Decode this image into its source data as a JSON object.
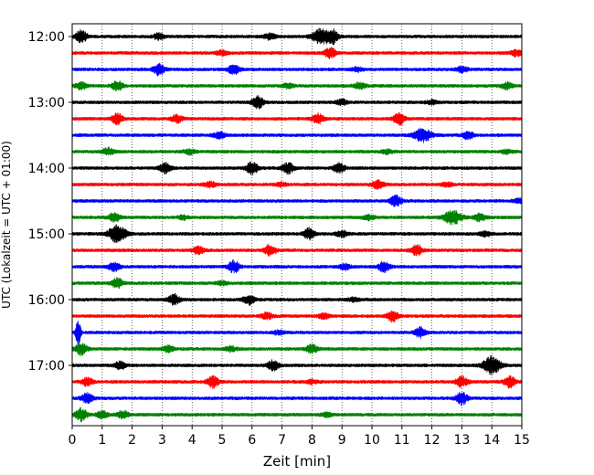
{
  "chart_data": {
    "type": "line",
    "title": "",
    "xlabel": "Zeit  [min]",
    "ylabel": "UTC (Lokalzeit = UTC + 01:00)",
    "xlim": [
      0,
      15
    ],
    "x_ticks": [
      0,
      1,
      2,
      3,
      4,
      5,
      6,
      7,
      8,
      9,
      10,
      11,
      12,
      13,
      14,
      15
    ],
    "x_tick_labels": [
      "0",
      "1",
      "2",
      "3",
      "4",
      "5",
      "6",
      "7",
      "8",
      "9",
      "10",
      "11",
      "12",
      "13",
      "14",
      "15"
    ],
    "y_tick_labels": [
      "12:00",
      "13:00",
      "14:00",
      "15:00",
      "16:00",
      "17:00"
    ],
    "grid": "vertical dotted at each minute",
    "line_colors": [
      "#000000",
      "#ff0000",
      "#0000ff",
      "#008000"
    ],
    "traces": [
      {
        "start": "12:00",
        "color": "#000000",
        "bursts": [
          {
            "t": 0.3,
            "a": 1.0
          },
          {
            "t": 2.9,
            "a": 0.5
          },
          {
            "t": 6.6,
            "a": 0.5
          },
          {
            "t": 8.3,
            "a": 1.2
          },
          {
            "t": 8.7,
            "a": 1.0
          }
        ]
      },
      {
        "start": "12:15",
        "color": "#ff0000",
        "bursts": [
          {
            "t": 5.0,
            "a": 0.4
          },
          {
            "t": 8.6,
            "a": 0.9
          },
          {
            "t": 14.8,
            "a": 0.5
          }
        ]
      },
      {
        "start": "12:30",
        "color": "#0000ff",
        "bursts": [
          {
            "t": 2.9,
            "a": 0.9
          },
          {
            "t": 5.4,
            "a": 0.8
          },
          {
            "t": 9.5,
            "a": 0.3
          },
          {
            "t": 13.0,
            "a": 0.5
          }
        ]
      },
      {
        "start": "12:45",
        "color": "#008000",
        "bursts": [
          {
            "t": 0.3,
            "a": 0.6
          },
          {
            "t": 1.5,
            "a": 0.8
          },
          {
            "t": 7.2,
            "a": 0.4
          },
          {
            "t": 9.6,
            "a": 0.5
          },
          {
            "t": 14.5,
            "a": 0.5
          }
        ]
      },
      {
        "start": "13:00",
        "color": "#000000",
        "bursts": [
          {
            "t": 6.2,
            "a": 1.0
          },
          {
            "t": 9.0,
            "a": 0.4
          },
          {
            "t": 12.0,
            "a": 0.3
          }
        ]
      },
      {
        "start": "13:15",
        "color": "#ff0000",
        "bursts": [
          {
            "t": 1.5,
            "a": 0.9
          },
          {
            "t": 3.5,
            "a": 0.6
          },
          {
            "t": 8.2,
            "a": 0.8
          },
          {
            "t": 10.9,
            "a": 1.0
          }
        ]
      },
      {
        "start": "13:30",
        "color": "#0000ff",
        "bursts": [
          {
            "t": 4.9,
            "a": 0.5
          },
          {
            "t": 11.7,
            "a": 1.1
          },
          {
            "t": 13.2,
            "a": 0.6
          }
        ]
      },
      {
        "start": "13:45",
        "color": "#008000",
        "bursts": [
          {
            "t": 1.2,
            "a": 0.6
          },
          {
            "t": 3.9,
            "a": 0.4
          },
          {
            "t": 10.5,
            "a": 0.3
          },
          {
            "t": 14.5,
            "a": 0.3
          }
        ]
      },
      {
        "start": "14:00",
        "color": "#000000",
        "bursts": [
          {
            "t": 3.1,
            "a": 0.8
          },
          {
            "t": 6.0,
            "a": 1.0
          },
          {
            "t": 7.2,
            "a": 0.9
          },
          {
            "t": 8.9,
            "a": 0.8
          }
        ]
      },
      {
        "start": "14:15",
        "color": "#ff0000",
        "bursts": [
          {
            "t": 4.6,
            "a": 0.4
          },
          {
            "t": 7.0,
            "a": 0.3
          },
          {
            "t": 10.2,
            "a": 0.7
          },
          {
            "t": 12.5,
            "a": 0.3
          }
        ]
      },
      {
        "start": "14:30",
        "color": "#0000ff",
        "bursts": [
          {
            "t": 10.8,
            "a": 0.9
          },
          {
            "t": 14.9,
            "a": 0.3
          }
        ]
      },
      {
        "start": "14:45",
        "color": "#008000",
        "bursts": [
          {
            "t": 1.4,
            "a": 0.7
          },
          {
            "t": 3.7,
            "a": 0.3
          },
          {
            "t": 9.9,
            "a": 0.4
          },
          {
            "t": 12.7,
            "a": 1.1
          },
          {
            "t": 13.6,
            "a": 0.6
          }
        ]
      },
      {
        "start": "15:00",
        "color": "#000000",
        "bursts": [
          {
            "t": 1.5,
            "a": 1.4
          },
          {
            "t": 7.9,
            "a": 0.9
          },
          {
            "t": 9.0,
            "a": 0.5
          },
          {
            "t": 13.8,
            "a": 0.4
          }
        ]
      },
      {
        "start": "15:15",
        "color": "#ff0000",
        "bursts": [
          {
            "t": 4.2,
            "a": 0.6
          },
          {
            "t": 6.6,
            "a": 0.9
          },
          {
            "t": 11.5,
            "a": 0.9
          }
        ]
      },
      {
        "start": "15:30",
        "color": "#0000ff",
        "bursts": [
          {
            "t": 1.4,
            "a": 0.7
          },
          {
            "t": 5.4,
            "a": 1.0
          },
          {
            "t": 9.1,
            "a": 0.4
          },
          {
            "t": 10.4,
            "a": 0.8
          }
        ]
      },
      {
        "start": "15:45",
        "color": "#008000",
        "bursts": [
          {
            "t": 1.5,
            "a": 0.8
          },
          {
            "t": 5.0,
            "a": 0.3
          }
        ]
      },
      {
        "start": "16:00",
        "color": "#000000",
        "bursts": [
          {
            "t": 3.4,
            "a": 0.8
          },
          {
            "t": 5.9,
            "a": 0.8
          },
          {
            "t": 9.4,
            "a": 0.3
          }
        ]
      },
      {
        "start": "16:15",
        "color": "#ff0000",
        "bursts": [
          {
            "t": 6.5,
            "a": 0.5
          },
          {
            "t": 8.4,
            "a": 0.4
          },
          {
            "t": 10.7,
            "a": 0.9
          }
        ]
      },
      {
        "start": "16:30",
        "color": "#0000ff",
        "bursts": [
          {
            "t": 0.2,
            "a": 2.2
          },
          {
            "t": 6.9,
            "a": 0.3
          },
          {
            "t": 11.6,
            "a": 0.8
          }
        ]
      },
      {
        "start": "16:45",
        "color": "#008000",
        "bursts": [
          {
            "t": 0.3,
            "a": 1.0
          },
          {
            "t": 3.2,
            "a": 0.5
          },
          {
            "t": 5.3,
            "a": 0.4
          },
          {
            "t": 8.0,
            "a": 0.7
          }
        ]
      },
      {
        "start": "17:00",
        "color": "#000000",
        "bursts": [
          {
            "t": 1.6,
            "a": 0.6
          },
          {
            "t": 6.7,
            "a": 0.8
          },
          {
            "t": 14.0,
            "a": 1.4
          }
        ]
      },
      {
        "start": "17:15",
        "color": "#ff0000",
        "bursts": [
          {
            "t": 0.5,
            "a": 0.7
          },
          {
            "t": 4.7,
            "a": 0.9
          },
          {
            "t": 8.0,
            "a": 0.3
          },
          {
            "t": 13.0,
            "a": 0.9
          },
          {
            "t": 14.6,
            "a": 0.9
          }
        ]
      },
      {
        "start": "17:30",
        "color": "#0000ff",
        "bursts": [
          {
            "t": 0.5,
            "a": 0.8
          },
          {
            "t": 13.0,
            "a": 1.0
          }
        ]
      },
      {
        "start": "17:45",
        "color": "#008000",
        "bursts": [
          {
            "t": 0.3,
            "a": 1.0
          },
          {
            "t": 1.0,
            "a": 0.6
          },
          {
            "t": 1.7,
            "a": 0.6
          },
          {
            "t": 8.5,
            "a": 0.3
          }
        ]
      }
    ]
  }
}
